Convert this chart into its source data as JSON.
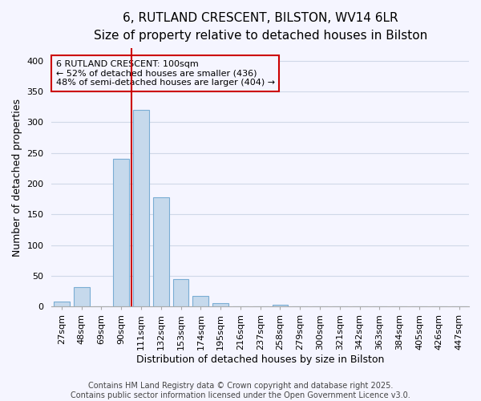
{
  "title": "6, RUTLAND CRESCENT, BILSTON, WV14 6LR",
  "subtitle": "Size of property relative to detached houses in Bilston",
  "xlabel": "Distribution of detached houses by size in Bilston",
  "ylabel": "Number of detached properties",
  "categories": [
    "27sqm",
    "48sqm",
    "69sqm",
    "90sqm",
    "111sqm",
    "132sqm",
    "153sqm",
    "174sqm",
    "195sqm",
    "216sqm",
    "237sqm",
    "258sqm",
    "279sqm",
    "300sqm",
    "321sqm",
    "342sqm",
    "363sqm",
    "384sqm",
    "405sqm",
    "426sqm",
    "447sqm"
  ],
  "values": [
    8,
    32,
    0,
    240,
    320,
    178,
    45,
    17,
    5,
    0,
    0,
    3,
    0,
    0,
    0,
    0,
    0,
    0,
    0,
    0,
    1
  ],
  "bar_color": "#c6d9ec",
  "bar_edge_color": "#7aadd4",
  "grid_color": "#d0d8e8",
  "vline_x": 3.5,
  "vline_color": "#cc0000",
  "annotation_text": "6 RUTLAND CRESCENT: 100sqm\n← 52% of detached houses are smaller (436)\n48% of semi-detached houses are larger (404) →",
  "annotation_box_color": "#cc0000",
  "ylim": [
    0,
    420
  ],
  "yticks": [
    0,
    50,
    100,
    150,
    200,
    250,
    300,
    350,
    400
  ],
  "footer": "Contains HM Land Registry data © Crown copyright and database right 2025.\nContains public sector information licensed under the Open Government Licence v3.0.",
  "title_fontsize": 11,
  "subtitle_fontsize": 9.5,
  "axis_label_fontsize": 9,
  "tick_fontsize": 8,
  "annotation_fontsize": 8,
  "footer_fontsize": 7,
  "bg_color": "#f5f5ff"
}
